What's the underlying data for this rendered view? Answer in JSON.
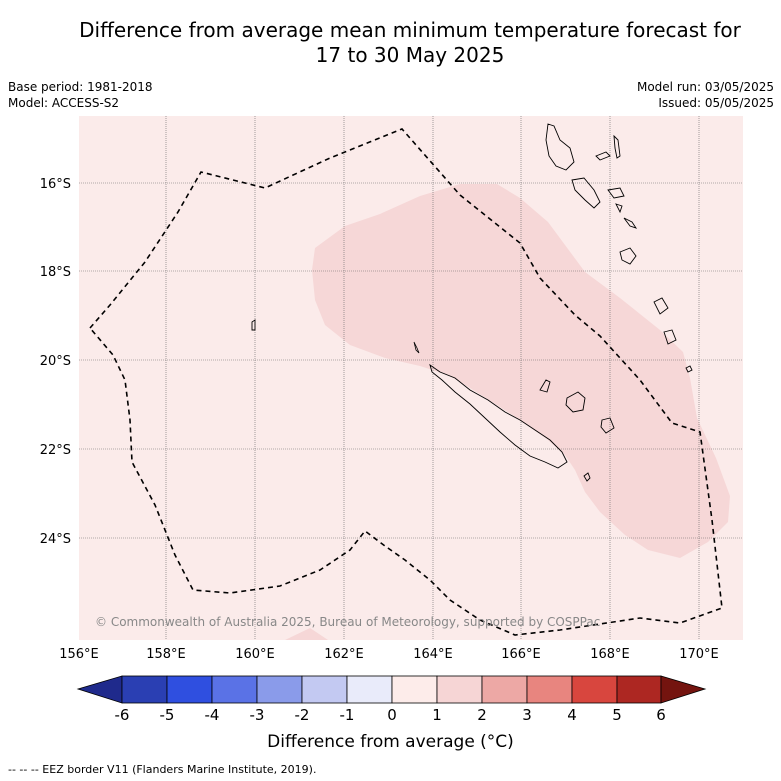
{
  "title_line1": "Difference from average mean minimum temperature forecast for",
  "title_line2": "17 to 30 May 2025",
  "meta_left": [
    "Base period: 1981-2018",
    "Model: ACCESS-S2"
  ],
  "meta_right": [
    "Model run: 03/05/2025",
    "Issued: 05/05/2025"
  ],
  "copyright": "© Commonwealth of Australia 2025, Bureau of Meteorology, supported by COSPPac",
  "lon_ticks": [
    "156°E",
    "158°E",
    "160°E",
    "162°E",
    "164°E",
    "166°E",
    "168°E",
    "170°E"
  ],
  "lat_ticks": [
    "16°S",
    "18°S",
    "20°S",
    "22°S",
    "24°S"
  ],
  "colorbar": {
    "ticks": [
      "-6",
      "-5",
      "-4",
      "-3",
      "-2",
      "-1",
      "0",
      "1",
      "2",
      "3",
      "4",
      "5",
      "6"
    ],
    "label": "Difference from average (°C)",
    "colors": [
      "#1f2a8c",
      "#2a3fb3",
      "#2f4fe0",
      "#5a72e6",
      "#8a9bea",
      "#c3c9f2",
      "#e9ebfa",
      "#fdecea",
      "#f6d5d5",
      "#eda8a5",
      "#e8857f",
      "#d8463e",
      "#ad2722",
      "#74140f"
    ]
  },
  "legend_footer": "-- -- -- EEZ border V11 (Flanders Marine Institute, 2019).",
  "map_colors": {
    "background": "#fbebea",
    "anomaly_1_2": "#f6d7d7",
    "gridline": "#666666"
  }
}
